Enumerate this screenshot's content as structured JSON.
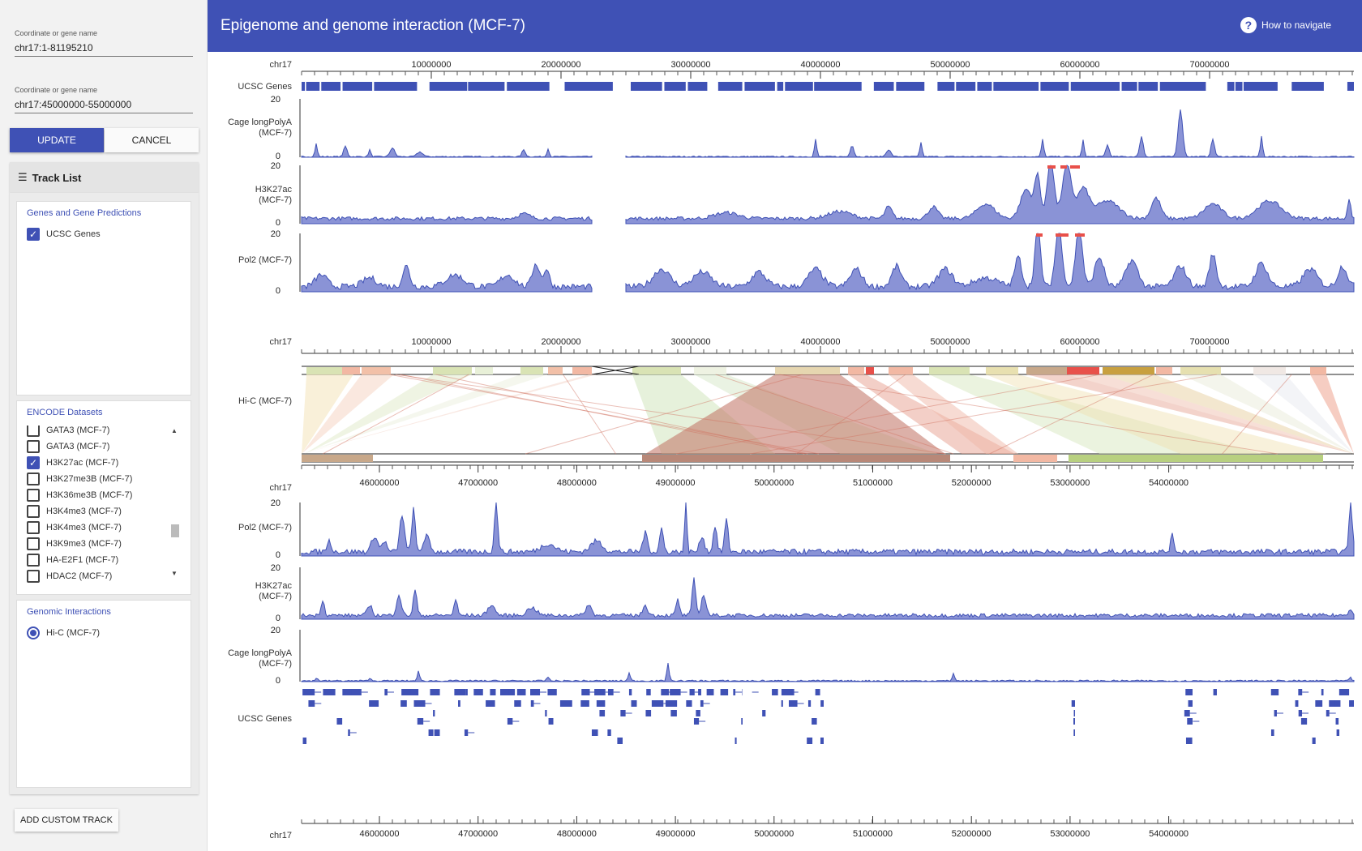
{
  "header": {
    "title": "Epigenome and genome interaction (MCF-7)",
    "help_label": "How to navigate"
  },
  "sidebar": {
    "field1": {
      "label": "Coordinate or gene name",
      "value": "chr17:1-81195210"
    },
    "field2": {
      "label": "Coordinate or gene name",
      "value": "chr17:45000000-55000000"
    },
    "update_label": "UPDATE",
    "cancel_label": "CANCEL",
    "tracklist_title": "Track List",
    "genes_panel": {
      "title": "Genes and Gene Predictions",
      "items": [
        {
          "label": "UCSC Genes",
          "checked": true
        }
      ]
    },
    "encode_panel": {
      "title": "ENCODE Datasets",
      "items": [
        {
          "label": "GATA3 (MCF-7)",
          "checked": false
        },
        {
          "label": "GATA3 (MCF-7)",
          "checked": false
        },
        {
          "label": "H3K27ac (MCF-7)",
          "checked": true
        },
        {
          "label": "H3K27me3B (MCF-7)",
          "checked": false
        },
        {
          "label": "H3K36me3B (MCF-7)",
          "checked": false
        },
        {
          "label": "H3K4me3 (MCF-7)",
          "checked": false
        },
        {
          "label": "H3K4me3 (MCF-7)",
          "checked": false
        },
        {
          "label": "H3K9me3 (MCF-7)",
          "checked": false
        },
        {
          "label": "HA-E2F1 (MCF-7)",
          "checked": false
        },
        {
          "label": "HDAC2 (MCF-7)",
          "checked": false
        }
      ]
    },
    "interactions_panel": {
      "title": "Genomic Interactions",
      "items": [
        {
          "label": "Hi-C (MCF-7)",
          "selected": true
        }
      ]
    },
    "custom_track_label": "ADD CUSTOM TRACK"
  },
  "browser": {
    "chrom": "chr17",
    "top_ticks": [
      "10000000",
      "20000000",
      "30000000",
      "40000000",
      "50000000",
      "60000000",
      "70000000"
    ],
    "bottom_ticks": [
      "46000000",
      "47000000",
      "48000000",
      "49000000",
      "50000000",
      "51000000",
      "52000000",
      "53000000",
      "54000000"
    ],
    "labels": {
      "ucsc": "UCSC Genes",
      "cage1": "Cage longPolyA",
      "cage2": "(MCF-7)",
      "h3k1": "H3K27ac",
      "h3k2": "(MCF-7)",
      "pol2": "Pol2 (MCF-7)",
      "hic": "Hi-C (MCF-7)"
    },
    "y_max": "20",
    "y_min": "0"
  },
  "colors": {
    "primary": "#3f51b5",
    "signal": "#3f51b5",
    "signal_fill": "#7b86cf"
  }
}
